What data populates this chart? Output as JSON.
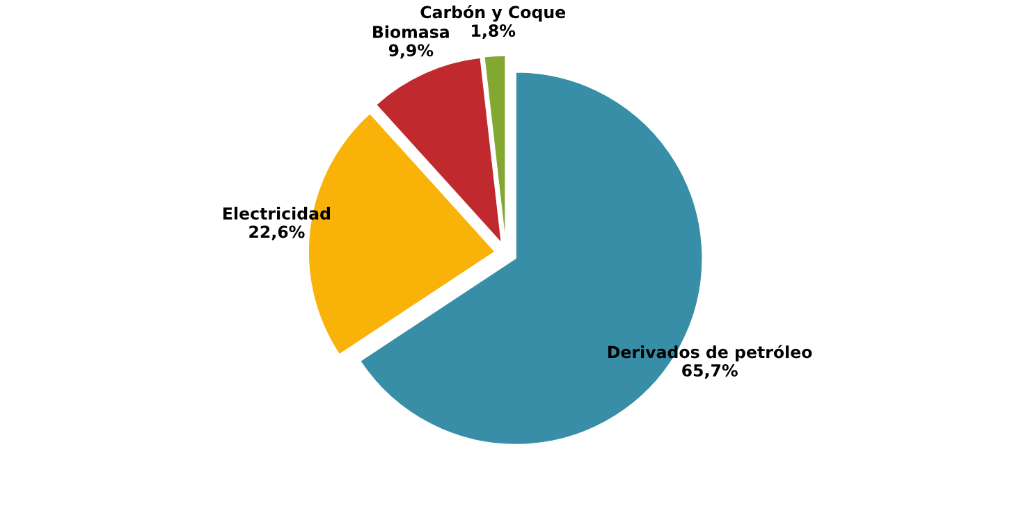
{
  "chart_data": {
    "type": "pie",
    "categories": [
      "Derivados de petróleo",
      "Electricidad",
      "Biomasa",
      "Carbón y Coque"
    ],
    "values": [
      65.7,
      22.6,
      9.9,
      1.8
    ],
    "value_labels": [
      "65,7%",
      "22,6%",
      "9,9%",
      "1,8%"
    ],
    "colors": [
      "#378ea6",
      "#f9b208",
      "#c0292e",
      "#82a832"
    ]
  }
}
